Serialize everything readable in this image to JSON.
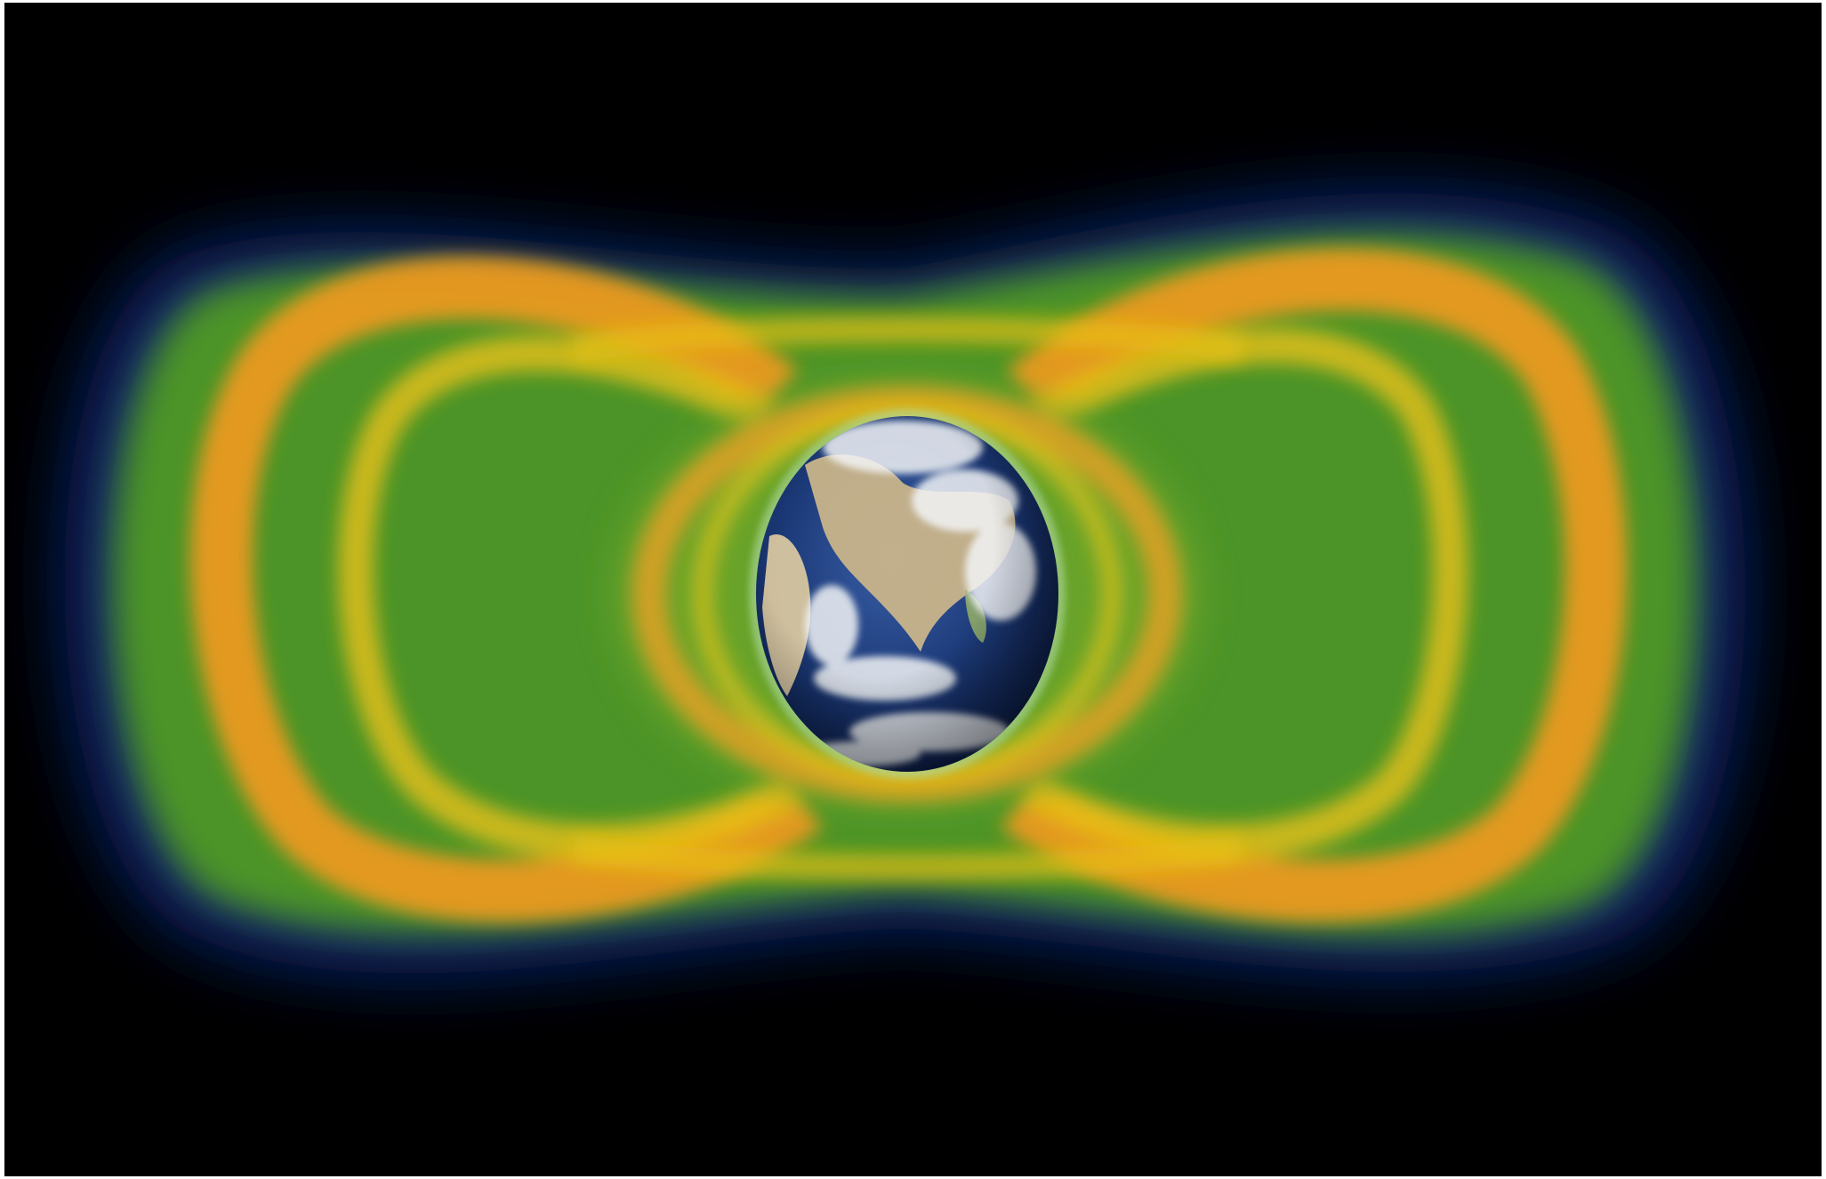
{
  "image": {
    "subject": "earth-radiation-belts",
    "colors": {
      "background": "#000000",
      "belt_outer_glow": "#0a2a7a",
      "belt_green": "#6fb02a",
      "belt_yellow": "#e0c010",
      "belt_orange": "#f39a1c",
      "ocean": "#1c3a78",
      "land": "#c9b48a",
      "cloud": "#f2f4f6"
    },
    "icons": [
      "earth-globe-icon"
    ]
  }
}
